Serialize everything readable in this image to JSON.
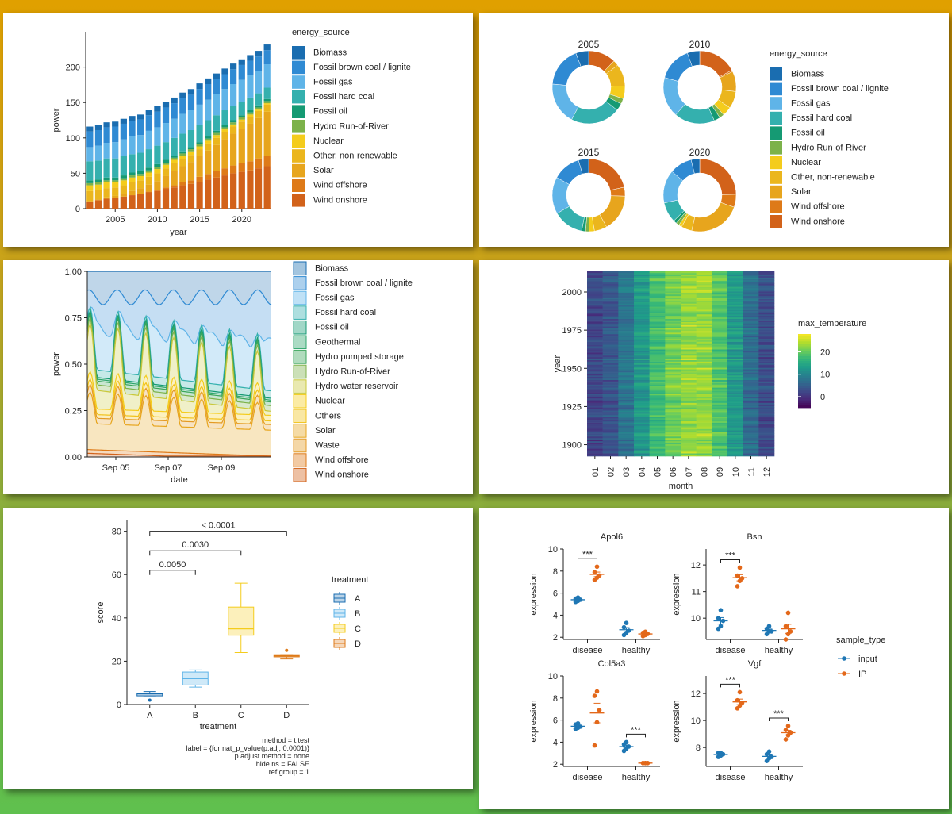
{
  "colors": {
    "Biomass": "#1a6db0",
    "Fossil brown coal / lignite": "#2f8ad3",
    "Fossil gas": "#5fb4e8",
    "Fossil hard coal": "#34b0ae",
    "Fossil oil": "#159a73",
    "Geothermal": "#2ea66b",
    "Hydro pumped storage": "#3aa55a",
    "Hydro Run-of-River": "#7cb24a",
    "Hydro water reservoir": "#c9c83a",
    "Nuclear": "#f4cc1c",
    "Others": "#f1c21a",
    "Other, non-renewable": "#ebb61d",
    "Solar": "#e7a51d",
    "Waste": "#e49a24",
    "Wind offshore": "#de7a18",
    "Wind onshore": "#d2621a",
    "input": "#1f77b4",
    "IP": "#e3681a"
  },
  "chart_data": [
    {
      "id": "stacked-bar",
      "type": "bar",
      "xlabel": "year",
      "ylabel": "power",
      "ylim": [
        0,
        250
      ],
      "yticks": [
        "0",
        "50",
        "100",
        "150",
        "200"
      ],
      "xticks": [
        "2005",
        "2010",
        "2015",
        "2020"
      ],
      "legend_title": "energy_source",
      "legend": [
        "Biomass",
        "Fossil brown coal / lignite",
        "Fossil gas",
        "Fossil hard coal",
        "Fossil oil",
        "Hydro Run-of-River",
        "Nuclear",
        "Other, non-renewable",
        "Solar",
        "Wind offshore",
        "Wind onshore"
      ],
      "categories": [
        "2002",
        "2003",
        "2004",
        "2005",
        "2006",
        "2007",
        "2008",
        "2009",
        "2010",
        "2011",
        "2012",
        "2013",
        "2014",
        "2015",
        "2016",
        "2017",
        "2018",
        "2019",
        "2020",
        "2021",
        "2022",
        "2023"
      ],
      "series": [
        {
          "name": "Wind onshore",
          "values": [
            10,
            12,
            14,
            15,
            17,
            19,
            21,
            23,
            25,
            28,
            30,
            33,
            35,
            38,
            41,
            44,
            47,
            50,
            52,
            54,
            57,
            60
          ]
        },
        {
          "name": "Wind offshore",
          "values": [
            0,
            0,
            0,
            0,
            0,
            0,
            0,
            1,
            1,
            2,
            3,
            4,
            5,
            7,
            8,
            9,
            10,
            11,
            12,
            13,
            14,
            15
          ]
        },
        {
          "name": "Solar",
          "values": [
            1,
            1,
            2,
            3,
            4,
            6,
            8,
            10,
            13,
            16,
            20,
            23,
            26,
            29,
            33,
            37,
            41,
            45,
            49,
            53,
            57,
            62
          ]
        },
        {
          "name": "Other, non-renewable",
          "values": [
            14,
            13,
            13,
            12,
            12,
            12,
            11,
            11,
            11,
            11,
            11,
            10,
            10,
            10,
            10,
            10,
            10,
            10,
            10,
            10,
            10,
            10
          ]
        },
        {
          "name": "Nuclear",
          "values": [
            8,
            8,
            8,
            7,
            7,
            7,
            6,
            6,
            6,
            5,
            5,
            5,
            5,
            4,
            4,
            4,
            4,
            3,
            3,
            3,
            2,
            2
          ]
        },
        {
          "name": "Hydro Run-of-River",
          "values": [
            3,
            3,
            3,
            3,
            3,
            3,
            3,
            3,
            3,
            3,
            3,
            3,
            3,
            3,
            3,
            3,
            3,
            3,
            3,
            3,
            3,
            3
          ]
        },
        {
          "name": "Fossil oil",
          "values": [
            4,
            4,
            4,
            4,
            4,
            4,
            4,
            4,
            4,
            4,
            3,
            3,
            3,
            3,
            3,
            3,
            3,
            3,
            3,
            3,
            3,
            3
          ]
        },
        {
          "name": "Fossil hard coal",
          "values": [
            27,
            27,
            27,
            27,
            27,
            26,
            26,
            26,
            26,
            25,
            25,
            25,
            24,
            24,
            23,
            22,
            21,
            20,
            19,
            18,
            17,
            16
          ]
        },
        {
          "name": "Fossil gas",
          "values": [
            20,
            21,
            22,
            23,
            24,
            25,
            25,
            26,
            26,
            27,
            27,
            28,
            28,
            29,
            29,
            30,
            30,
            31,
            31,
            32,
            32,
            33
          ]
        },
        {
          "name": "Fossil brown coal / lignite",
          "values": [
            22,
            22,
            22,
            22,
            22,
            22,
            22,
            22,
            22,
            22,
            22,
            22,
            22,
            22,
            22,
            21,
            21,
            21,
            21,
            20,
            20,
            20
          ]
        },
        {
          "name": "Biomass",
          "values": [
            7,
            7,
            7,
            7,
            7,
            7,
            7,
            7,
            8,
            8,
            8,
            8,
            8,
            8,
            8,
            8,
            8,
            8,
            8,
            8,
            8,
            8
          ]
        }
      ]
    },
    {
      "id": "donuts",
      "type": "pie",
      "legend_title": "energy_source",
      "legend": [
        "Biomass",
        "Fossil brown coal / lignite",
        "Fossil gas",
        "Fossil hard coal",
        "Fossil oil",
        "Hydro Run-of-River",
        "Nuclear",
        "Other, non-renewable",
        "Solar",
        "Wind offshore",
        "Wind onshore"
      ],
      "order": [
        "Wind onshore",
        "Wind offshore",
        "Solar",
        "Other, non-renewable",
        "Nuclear",
        "Hydro Run-of-River",
        "Fossil oil",
        "Fossil hard coal",
        "Fossil gas",
        "Fossil brown coal / lignite",
        "Biomass"
      ],
      "pies": [
        {
          "title": "2005",
          "values": [
            15,
            0,
            3,
            12,
            7,
            3,
            4,
            27,
            23,
            22,
            7
          ]
        },
        {
          "title": "2010",
          "values": [
            25,
            1,
            13,
            11,
            6,
            3,
            4,
            26,
            26,
            22,
            8
          ]
        },
        {
          "title": "2015",
          "values": [
            38,
            7,
            29,
            10,
            4,
            3,
            3,
            24,
            29,
            22,
            8
          ]
        },
        {
          "title": "2020",
          "values": [
            52,
            12,
            49,
            10,
            3,
            3,
            3,
            19,
            31,
            21,
            8
          ]
        }
      ]
    },
    {
      "id": "proportional-area",
      "type": "area",
      "xlabel": "date",
      "ylabel": "power",
      "ylim": [
        0,
        1
      ],
      "yticks": [
        "0.00",
        "0.25",
        "0.50",
        "0.75",
        "1.00"
      ],
      "xticks": [
        "Sep 05",
        "Sep 07",
        "Sep 09"
      ],
      "legend": [
        "Biomass",
        "Fossil brown coal / lignite",
        "Fossil gas",
        "Fossil hard coal",
        "Fossil oil",
        "Geothermal",
        "Hydro pumped storage",
        "Hydro Run-of-River",
        "Hydro water reservoir",
        "Nuclear",
        "Others",
        "Solar",
        "Waste",
        "Wind offshore",
        "Wind onshore"
      ],
      "bands": [
        {
          "name": "Wind onshore",
          "base": 0.02,
          "amp": 0.0,
          "offset": 0.0
        },
        {
          "name": "Wind offshore",
          "base": 0.04,
          "amp": 0.0,
          "offset": 0.0
        },
        {
          "name": "Solar",
          "base": 0.18,
          "amp": 0.17,
          "offset": 0.0
        },
        {
          "name": "Waste",
          "base": 0.21,
          "amp": 0.18,
          "offset": 0.0
        },
        {
          "name": "Others",
          "base": 0.23,
          "amp": 0.19,
          "offset": 0.0
        },
        {
          "name": "Nuclear",
          "base": 0.26,
          "amp": 0.2,
          "offset": 0.0
        },
        {
          "name": "Hydro water reservoir",
          "base": 0.44,
          "amp": 0.28,
          "offset": 0.0
        },
        {
          "name": "Hydro Run-of-River",
          "base": 0.47,
          "amp": 0.28,
          "offset": 0.0
        },
        {
          "name": "Hydro pumped storage",
          "base": 0.49,
          "amp": 0.28,
          "offset": 0.0
        },
        {
          "name": "Geothermal",
          "base": 0.5,
          "amp": 0.28,
          "offset": 0.0
        },
        {
          "name": "Fossil oil",
          "base": 0.51,
          "amp": 0.28,
          "offset": 0.0
        },
        {
          "name": "Fossil hard coal",
          "base": 0.55,
          "amp": 0.26,
          "offset": 0.0
        },
        {
          "name": "Fossil gas",
          "base": 0.7,
          "amp": 0.14,
          "offset": 0.0
        },
        {
          "name": "Fossil brown coal / lignite",
          "base": 0.88,
          "amp": 0.03,
          "offset": 0.0
        },
        {
          "name": "Biomass",
          "base": 1.0,
          "amp": 0.0,
          "offset": 0.0
        }
      ]
    },
    {
      "id": "heatmap",
      "type": "heatmap",
      "xlabel": "month",
      "ylabel": "year",
      "xticks": [
        "01",
        "02",
        "03",
        "04",
        "05",
        "06",
        "07",
        "08",
        "09",
        "10",
        "11",
        "12"
      ],
      "yticks": [
        "1900",
        "1925",
        "1950",
        "1975",
        "2000"
      ],
      "year_range": [
        1893,
        2013
      ],
      "legend_title": "max_temperature",
      "legend_ticks": [
        "0",
        "10",
        "20"
      ],
      "legend_range": [
        -5,
        28
      ],
      "monthly_mean_max_temperature": [
        2,
        4,
        8,
        13,
        18,
        21,
        23,
        23,
        19,
        13,
        7,
        3
      ]
    },
    {
      "id": "boxplot",
      "type": "box",
      "xlabel": "treatment",
      "ylabel": "score",
      "ylim": [
        0,
        85
      ],
      "yticks": [
        "0",
        "20",
        "40",
        "60",
        "80"
      ],
      "categories": [
        "A",
        "B",
        "C",
        "D"
      ],
      "legend_title": "treatment",
      "legend": [
        "A",
        "B",
        "C",
        "D"
      ],
      "boxes": [
        {
          "name": "A",
          "min": 4,
          "q1": 4,
          "median": 5,
          "q3": 5,
          "max": 6,
          "outliers": [
            2
          ]
        },
        {
          "name": "B",
          "min": 8,
          "q1": 9,
          "median": 12,
          "q3": 15,
          "max": 16,
          "outliers": []
        },
        {
          "name": "C",
          "min": 24,
          "q1": 32,
          "median": 35,
          "q3": 45,
          "max": 56,
          "outliers": []
        },
        {
          "name": "D",
          "min": 21,
          "q1": 22,
          "median": 22.5,
          "q3": 23,
          "max": 23,
          "outliers": [
            25
          ]
        }
      ],
      "brackets": [
        {
          "from": "A",
          "to": "B",
          "y": 62,
          "label": "0.0050"
        },
        {
          "from": "A",
          "to": "C",
          "y": 71,
          "label": "0.0030"
        },
        {
          "from": "A",
          "to": "D",
          "y": 80,
          "label": "< 0.0001"
        }
      ],
      "caption": [
        "method = t.test",
        "label = {format_p_value(p.adj, 0.0001)}",
        "p.adjust.method = none",
        "hide.ns = FALSE",
        "ref.group = 1"
      ]
    },
    {
      "id": "facets",
      "type": "scatter",
      "xlabel": "",
      "ylabel": "expression",
      "categories": [
        "disease",
        "healthy"
      ],
      "legend_title": "sample_type",
      "legend": [
        "input",
        "IP"
      ],
      "facets": [
        {
          "title": "Apol6",
          "ylim": [
            1.8,
            10
          ],
          "yticks": [
            2,
            4,
            6,
            8,
            10
          ],
          "input": {
            "disease": [
              5.2,
              5.3,
              5.4,
              5.5,
              5.6
            ],
            "healthy": [
              2.2,
              2.4,
              2.6,
              2.9,
              3.3
            ]
          },
          "IP": {
            "disease": [
              7.2,
              7.4,
              7.6,
              7.9,
              8.4
            ],
            "healthy": [
              2.1,
              2.2,
              2.3,
              2.4,
              2.5
            ]
          },
          "signif": [
            {
              "group": "disease",
              "label": "***"
            }
          ]
        },
        {
          "title": "Bsn",
          "ylim": [
            9.2,
            12.6
          ],
          "yticks": [
            10,
            11,
            12
          ],
          "input": {
            "disease": [
              9.6,
              9.7,
              9.9,
              10.0,
              10.3
            ],
            "healthy": [
              9.4,
              9.5,
              9.5,
              9.6,
              9.7
            ]
          },
          "IP": {
            "disease": [
              11.2,
              11.4,
              11.5,
              11.6,
              11.9
            ],
            "healthy": [
              9.2,
              9.4,
              9.5,
              9.7,
              10.2
            ]
          },
          "signif": [
            {
              "group": "disease",
              "label": "***"
            }
          ]
        },
        {
          "title": "Col5a3",
          "ylim": [
            1.8,
            10
          ],
          "yticks": [
            2,
            4,
            6,
            8,
            10
          ],
          "input": {
            "disease": [
              5.2,
              5.3,
              5.4,
              5.6,
              5.7
            ],
            "healthy": [
              3.2,
              3.4,
              3.6,
              3.8,
              4.0
            ]
          },
          "IP": {
            "disease": [
              3.7,
              5.8,
              6.9,
              8.2,
              8.6
            ],
            "healthy": [
              2.1,
              2.1,
              2.1,
              2.1,
              2.1
            ]
          },
          "signif": [
            {
              "group": "healthy",
              "label": "***"
            }
          ]
        },
        {
          "title": "Vgf",
          "ylim": [
            6.6,
            13.3
          ],
          "yticks": [
            8,
            10,
            12
          ],
          "input": {
            "disease": [
              7.3,
              7.4,
              7.5,
              7.6,
              7.6
            ],
            "healthy": [
              7.0,
              7.2,
              7.3,
              7.5,
              7.7
            ]
          },
          "IP": {
            "disease": [
              10.9,
              11.1,
              11.3,
              11.5,
              12.1
            ],
            "healthy": [
              8.6,
              8.9,
              9.1,
              9.3,
              9.6
            ]
          },
          "signif": [
            {
              "group": "disease",
              "label": "***"
            },
            {
              "group": "healthy",
              "label": "***"
            }
          ]
        }
      ]
    }
  ]
}
